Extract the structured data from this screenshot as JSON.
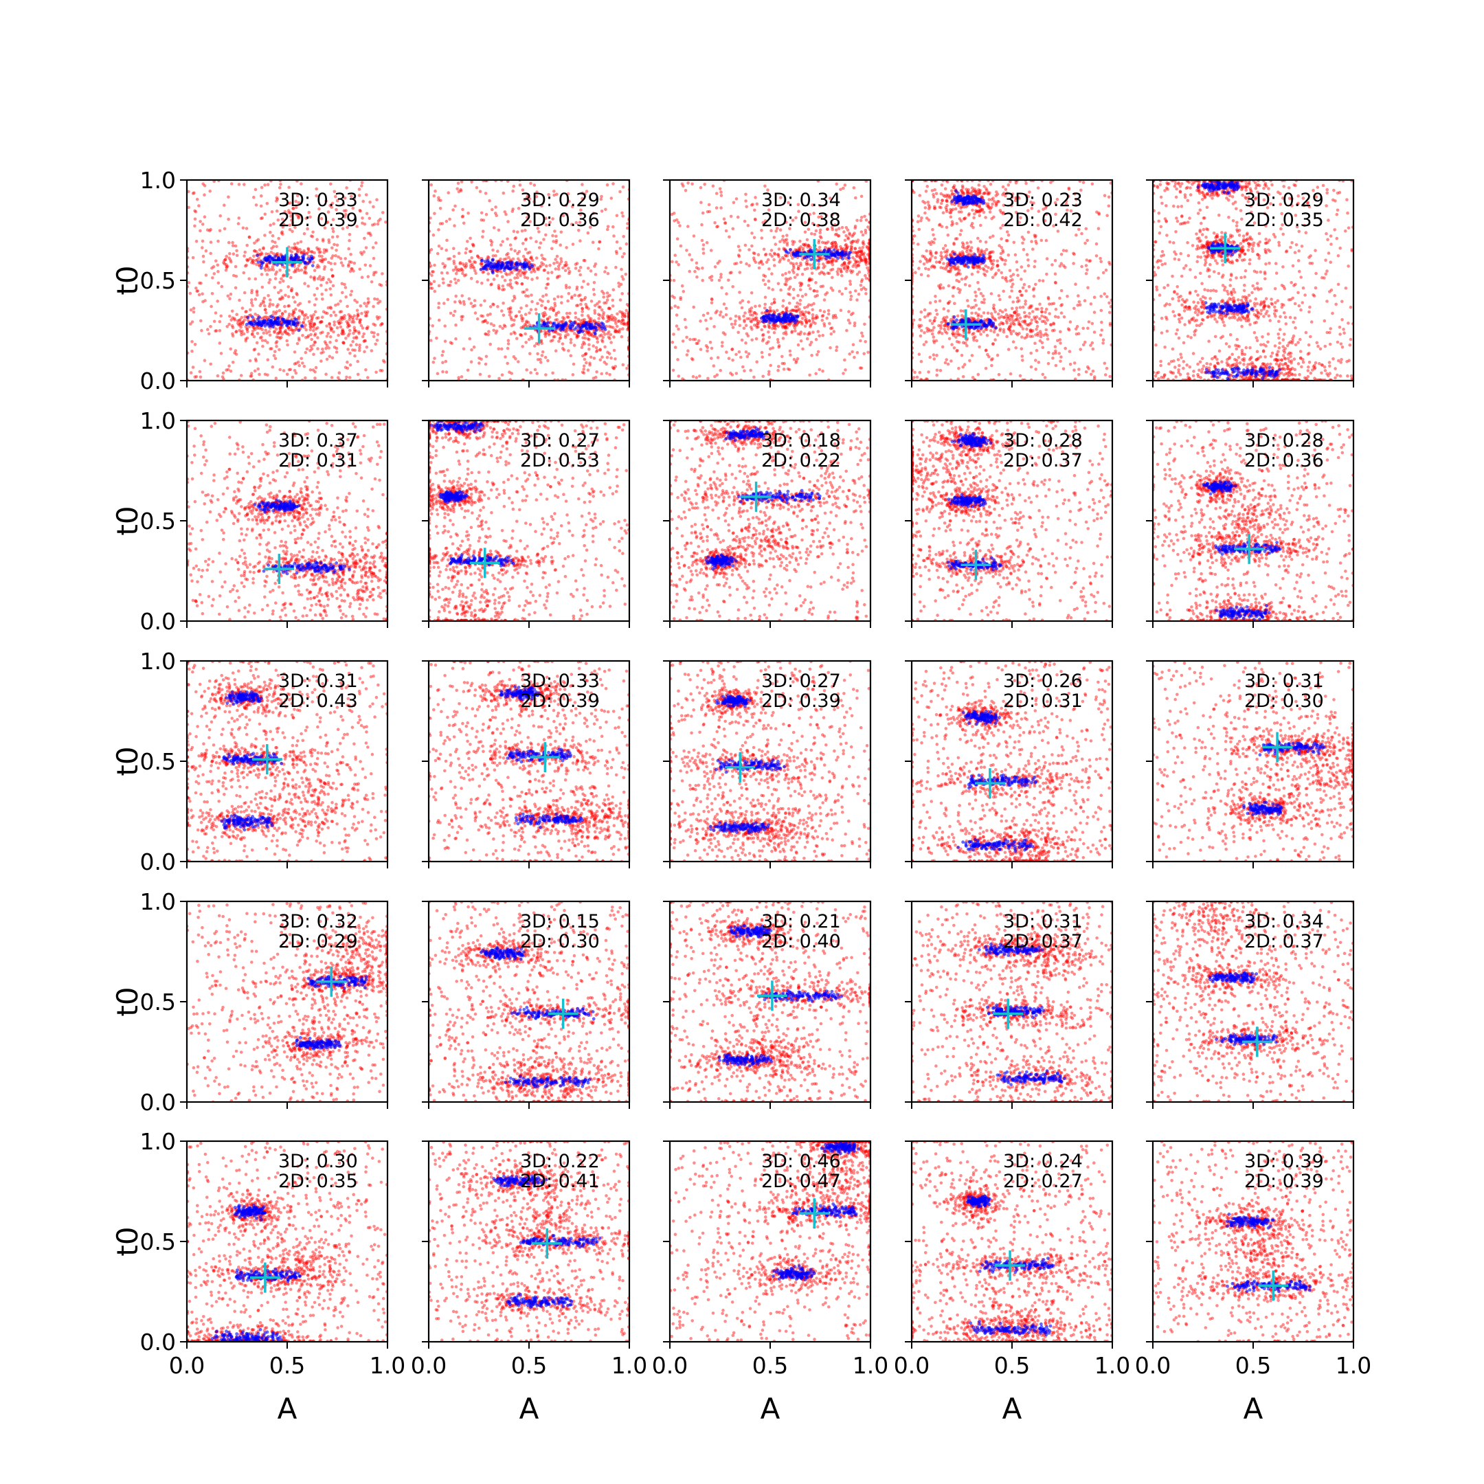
{
  "colors": {
    "posterior_color": "#ff0000",
    "bulk_color": "#0000ff",
    "truth_color": "#17becf"
  },
  "chart_data": {
    "type": "scatter",
    "rows": 5,
    "cols": 5,
    "xlabel": "A",
    "ylabel": "t0",
    "xlim": [
      0,
      1
    ],
    "ylim": [
      0,
      1
    ],
    "xticks": [
      "0.0",
      "0.5",
      "1.0"
    ],
    "yticks": [
      "0.0",
      "0.5",
      "1.0"
    ],
    "grid": false,
    "panels": [
      {
        "label_3d": "3D: 0.33",
        "label_2d": "2D: 0.39",
        "truth": [
          0.5,
          0.59
        ],
        "modes": [
          {
            "x": 0.5,
            "y": 0.6,
            "w": 0.3
          },
          {
            "x": 0.43,
            "y": 0.29,
            "w": 0.28
          }
        ],
        "tail": {
          "x": 0.78,
          "y": 0.25
        },
        "spread": 0.4
      },
      {
        "label_3d": "3D: 0.29",
        "label_2d": "2D: 0.36",
        "truth": [
          0.55,
          0.26
        ],
        "modes": [
          {
            "x": 0.38,
            "y": 0.57,
            "w": 0.28
          },
          {
            "x": 0.7,
            "y": 0.27,
            "w": 0.4
          }
        ],
        "tail": {
          "x": 0.85,
          "y": 0.27
        },
        "spread": 0.45
      },
      {
        "label_3d": "3D: 0.34",
        "label_2d": "2D: 0.38",
        "truth": [
          0.72,
          0.63
        ],
        "modes": [
          {
            "x": 0.75,
            "y": 0.63,
            "w": 0.35
          },
          {
            "x": 0.55,
            "y": 0.31,
            "w": 0.2
          }
        ],
        "tail": {
          "x": 0.88,
          "y": 0.62
        },
        "spread": 0.3
      },
      {
        "label_3d": "3D: 0.23",
        "label_2d": "2D: 0.42",
        "truth": [
          0.27,
          0.28
        ],
        "modes": [
          {
            "x": 0.28,
            "y": 0.9,
            "w": 0.15
          },
          {
            "x": 0.27,
            "y": 0.6,
            "w": 0.2
          },
          {
            "x": 0.3,
            "y": 0.28,
            "w": 0.25
          }
        ],
        "tail": {
          "x": 0.6,
          "y": 0.3
        },
        "spread": 0.5
      },
      {
        "label_3d": "3D: 0.29",
        "label_2d": "2D: 0.35",
        "truth": [
          0.36,
          0.66
        ],
        "modes": [
          {
            "x": 0.33,
            "y": 0.97,
            "w": 0.2
          },
          {
            "x": 0.35,
            "y": 0.66,
            "w": 0.15
          },
          {
            "x": 0.38,
            "y": 0.36,
            "w": 0.25
          },
          {
            "x": 0.45,
            "y": 0.04,
            "w": 0.4
          }
        ],
        "tail": {
          "x": 0.6,
          "y": 0.05
        },
        "spread": 0.5
      },
      {
        "label_3d": "3D: 0.37",
        "label_2d": "2D: 0.31",
        "truth": [
          0.46,
          0.26
        ],
        "modes": [
          {
            "x": 0.45,
            "y": 0.57,
            "w": 0.22
          },
          {
            "x": 0.6,
            "y": 0.27,
            "w": 0.45
          }
        ],
        "tail": {
          "x": 0.85,
          "y": 0.22
        },
        "spread": 0.4
      },
      {
        "label_3d": "3D: 0.27",
        "label_2d": "2D: 0.53",
        "truth": [
          0.28,
          0.29
        ],
        "modes": [
          {
            "x": 0.25,
            "y": 0.3,
            "w": 0.35
          },
          {
            "x": 0.12,
            "y": 0.62,
            "w": 0.12
          },
          {
            "x": 0.15,
            "y": 0.97,
            "w": 0.25
          }
        ],
        "tail": {
          "x": 0.2,
          "y": 0.05
        },
        "spread": 0.55
      },
      {
        "label_3d": "3D: 0.18",
        "label_2d": "2D: 0.22",
        "truth": [
          0.43,
          0.62
        ],
        "modes": [
          {
            "x": 0.55,
            "y": 0.62,
            "w": 0.45
          },
          {
            "x": 0.38,
            "y": 0.93,
            "w": 0.2
          },
          {
            "x": 0.25,
            "y": 0.3,
            "w": 0.12
          }
        ],
        "tail": {
          "x": 0.5,
          "y": 0.4
        },
        "spread": 0.5
      },
      {
        "label_3d": "3D: 0.28",
        "label_2d": "2D: 0.37",
        "truth": [
          0.32,
          0.28
        ],
        "modes": [
          {
            "x": 0.3,
            "y": 0.9,
            "w": 0.15
          },
          {
            "x": 0.28,
            "y": 0.6,
            "w": 0.18
          },
          {
            "x": 0.32,
            "y": 0.28,
            "w": 0.28
          }
        ],
        "tail": {
          "x": 0.08,
          "y": 0.75
        },
        "spread": 0.5
      },
      {
        "label_3d": "3D: 0.28",
        "label_2d": "2D: 0.36",
        "truth": [
          0.48,
          0.36
        ],
        "modes": [
          {
            "x": 0.33,
            "y": 0.67,
            "w": 0.12
          },
          {
            "x": 0.48,
            "y": 0.36,
            "w": 0.35
          },
          {
            "x": 0.45,
            "y": 0.04,
            "w": 0.25
          }
        ],
        "tail": {
          "x": 0.5,
          "y": 0.5
        },
        "spread": 0.5
      },
      {
        "label_3d": "3D: 0.31",
        "label_2d": "2D: 0.43",
        "truth": [
          0.4,
          0.51
        ],
        "modes": [
          {
            "x": 0.28,
            "y": 0.82,
            "w": 0.18
          },
          {
            "x": 0.32,
            "y": 0.51,
            "w": 0.3
          },
          {
            "x": 0.3,
            "y": 0.2,
            "w": 0.28
          }
        ],
        "tail": {
          "x": 0.6,
          "y": 0.3
        },
        "spread": 0.5
      },
      {
        "label_3d": "3D: 0.33",
        "label_2d": "2D: 0.39",
        "truth": [
          0.58,
          0.52
        ],
        "modes": [
          {
            "x": 0.45,
            "y": 0.84,
            "w": 0.2
          },
          {
            "x": 0.55,
            "y": 0.53,
            "w": 0.35
          },
          {
            "x": 0.6,
            "y": 0.21,
            "w": 0.35
          }
        ],
        "tail": {
          "x": 0.8,
          "y": 0.2
        },
        "spread": 0.5
      },
      {
        "label_3d": "3D: 0.27",
        "label_2d": "2D: 0.39",
        "truth": [
          0.35,
          0.47
        ],
        "modes": [
          {
            "x": 0.32,
            "y": 0.8,
            "w": 0.12
          },
          {
            "x": 0.4,
            "y": 0.48,
            "w": 0.35
          },
          {
            "x": 0.35,
            "y": 0.17,
            "w": 0.3
          }
        ],
        "tail": {
          "x": 0.5,
          "y": 0.15
        },
        "spread": 0.5
      },
      {
        "label_3d": "3D: 0.26",
        "label_2d": "2D: 0.31",
        "truth": [
          0.39,
          0.39
        ],
        "modes": [
          {
            "x": 0.35,
            "y": 0.72,
            "w": 0.15
          },
          {
            "x": 0.45,
            "y": 0.4,
            "w": 0.4
          },
          {
            "x": 0.42,
            "y": 0.08,
            "w": 0.4
          }
        ],
        "tail": {
          "x": 0.6,
          "y": 0.06
        },
        "spread": 0.5
      },
      {
        "label_3d": "3D: 0.31",
        "label_2d": "2D: 0.30",
        "truth": [
          0.62,
          0.57
        ],
        "modes": [
          {
            "x": 0.7,
            "y": 0.57,
            "w": 0.35
          },
          {
            "x": 0.55,
            "y": 0.26,
            "w": 0.2
          }
        ],
        "tail": {
          "x": 0.9,
          "y": 0.45
        },
        "spread": 0.35
      },
      {
        "label_3d": "3D: 0.32",
        "label_2d": "2D: 0.29",
        "truth": [
          0.72,
          0.6
        ],
        "modes": [
          {
            "x": 0.75,
            "y": 0.6,
            "w": 0.3
          },
          {
            "x": 0.65,
            "y": 0.29,
            "w": 0.22
          }
        ],
        "tail": {
          "x": 0.9,
          "y": 0.75
        },
        "spread": 0.3
      },
      {
        "label_3d": "3D: 0.15",
        "label_2d": "2D: 0.30",
        "truth": [
          0.67,
          0.44
        ],
        "modes": [
          {
            "x": 0.37,
            "y": 0.74,
            "w": 0.22
          },
          {
            "x": 0.62,
            "y": 0.44,
            "w": 0.45
          },
          {
            "x": 0.6,
            "y": 0.1,
            "w": 0.45
          }
        ],
        "tail": {
          "x": 0.55,
          "y": 0.15
        },
        "spread": 0.5
      },
      {
        "label_3d": "3D: 0.21",
        "label_2d": "2D: 0.40",
        "truth": [
          0.51,
          0.53
        ],
        "modes": [
          {
            "x": 0.65,
            "y": 0.53,
            "w": 0.45
          },
          {
            "x": 0.38,
            "y": 0.21,
            "w": 0.25
          },
          {
            "x": 0.4,
            "y": 0.85,
            "w": 0.2
          }
        ],
        "tail": {
          "x": 0.55,
          "y": 0.2
        },
        "spread": 0.5
      },
      {
        "label_3d": "3D: 0.31",
        "label_2d": "2D: 0.37",
        "truth": [
          0.48,
          0.44
        ],
        "modes": [
          {
            "x": 0.5,
            "y": 0.76,
            "w": 0.3
          },
          {
            "x": 0.52,
            "y": 0.45,
            "w": 0.3
          },
          {
            "x": 0.6,
            "y": 0.12,
            "w": 0.35
          }
        ],
        "tail": {
          "x": 0.7,
          "y": 0.75
        },
        "spread": 0.5
      },
      {
        "label_3d": "3D: 0.34",
        "label_2d": "2D: 0.37",
        "truth": [
          0.52,
          0.3
        ],
        "modes": [
          {
            "x": 0.4,
            "y": 0.62,
            "w": 0.25
          },
          {
            "x": 0.48,
            "y": 0.31,
            "w": 0.28
          }
        ],
        "tail": {
          "x": 0.3,
          "y": 0.9
        },
        "spread": 0.55
      },
      {
        "label_3d": "3D: 0.30",
        "label_2d": "2D: 0.35",
        "truth": [
          0.39,
          0.32
        ],
        "modes": [
          {
            "x": 0.32,
            "y": 0.65,
            "w": 0.15
          },
          {
            "x": 0.4,
            "y": 0.33,
            "w": 0.35
          },
          {
            "x": 0.3,
            "y": 0.02,
            "w": 0.35
          }
        ],
        "tail": {
          "x": 0.55,
          "y": 0.4
        },
        "spread": 0.55
      },
      {
        "label_3d": "3D: 0.22",
        "label_2d": "2D: 0.41",
        "truth": [
          0.59,
          0.49
        ],
        "modes": [
          {
            "x": 0.45,
            "y": 0.8,
            "w": 0.25
          },
          {
            "x": 0.65,
            "y": 0.5,
            "w": 0.45
          },
          {
            "x": 0.55,
            "y": 0.2,
            "w": 0.35
          }
        ],
        "tail": {
          "x": 0.6,
          "y": 0.6
        },
        "spread": 0.5
      },
      {
        "label_3d": "3D: 0.46",
        "label_2d": "2D: 0.47",
        "truth": [
          0.72,
          0.64
        ],
        "modes": [
          {
            "x": 0.78,
            "y": 0.65,
            "w": 0.35
          },
          {
            "x": 0.62,
            "y": 0.34,
            "w": 0.2
          },
          {
            "x": 0.85,
            "y": 0.97,
            "w": 0.15
          }
        ],
        "tail": {
          "x": 0.85,
          "y": 0.8
        },
        "spread": 0.35
      },
      {
        "label_3d": "3D: 0.24",
        "label_2d": "2D: 0.27",
        "truth": [
          0.49,
          0.38
        ],
        "modes": [
          {
            "x": 0.33,
            "y": 0.7,
            "w": 0.1
          },
          {
            "x": 0.52,
            "y": 0.38,
            "w": 0.4
          },
          {
            "x": 0.5,
            "y": 0.06,
            "w": 0.45
          }
        ],
        "tail": {
          "x": 0.5,
          "y": 0.1
        },
        "spread": 0.5
      },
      {
        "label_3d": "3D: 0.39",
        "label_2d": "2D: 0.39",
        "truth": [
          0.6,
          0.28
        ],
        "modes": [
          {
            "x": 0.48,
            "y": 0.6,
            "w": 0.22
          },
          {
            "x": 0.58,
            "y": 0.28,
            "w": 0.45
          }
        ],
        "tail": {
          "x": 0.55,
          "y": 0.45
        },
        "spread": 0.5
      }
    ]
  }
}
